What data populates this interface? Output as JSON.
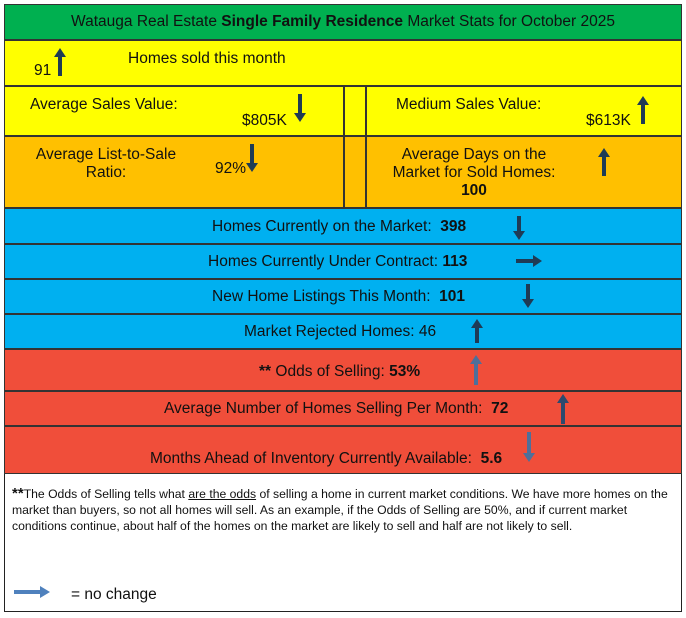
{
  "header": {
    "prefix": "Watauga Real Estate ",
    "bold": "Single Family Residence",
    "suffix": " Market Stats for October 2025"
  },
  "homes_sold": {
    "value": "91",
    "label": "Homes sold this month",
    "trend": "up"
  },
  "avg_sales": {
    "label": "Average Sales Value:",
    "value": "$805K",
    "trend": "down"
  },
  "medium_sales": {
    "label": "Medium Sales Value:",
    "value": "$613K",
    "trend": "up"
  },
  "list_to_sale": {
    "label_line1": "Average List-to-Sale",
    "label_line2": "Ratio:",
    "value": "92%",
    "trend": "down"
  },
  "days_on_market": {
    "label_line1": "Average Days on the",
    "label_line2": "Market for Sold Homes:",
    "value": "100",
    "trend": "up"
  },
  "on_market": {
    "label": "Homes Currently on the Market:",
    "value": "398",
    "trend": "down"
  },
  "under_contract": {
    "label": "Homes Currently Under Contract:",
    "value": "113",
    "trend": "no change"
  },
  "new_listings": {
    "label": "New Home Listings This Month:",
    "value": "101",
    "trend": "down"
  },
  "rejected": {
    "label": "Market Rejected Homes:",
    "value": "46",
    "trend": "up"
  },
  "odds": {
    "stars": "**",
    "label": "Odds of Selling:",
    "value": "53%",
    "trend": "up"
  },
  "avg_selling": {
    "label": "Average Number of Homes Selling Per Month:",
    "value": "72",
    "trend": "up"
  },
  "months_inventory": {
    "label": "Months Ahead of Inventory Currently Available:",
    "value": "5.6",
    "trend": "down"
  },
  "footnote": {
    "stars": "**",
    "part1": "The Odds of Selling tells what ",
    "underlined": "are the odds",
    "part2": " of selling a home in current market conditions. We have more homes on the market than buyers, so not all homes will sell. As an example, if the Odds of Selling are 50%, and if current market conditions continue, about half of the homes on the market are likely to sell and half are not likely to sell."
  },
  "legend": {
    "label": "= no change"
  },
  "colors": {
    "header": "#00b050",
    "yellow": "#ffff00",
    "orange": "#ffc000",
    "blue": "#00b0f0",
    "red": "#f04e3a",
    "arrow_dark": "#1f3b55",
    "arrow_legend": "#4f81bd"
  }
}
